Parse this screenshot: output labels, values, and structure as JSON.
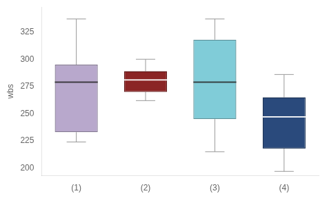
{
  "chart_data": {
    "type": "box",
    "categories": [
      "(1)",
      "(2)",
      "(3)",
      "(4)"
    ],
    "values": [
      {
        "whisker_low": 224,
        "q1": 233,
        "median": 279,
        "q3": 295,
        "whisker_high": 337
      },
      {
        "whisker_low": 262,
        "q1": 270,
        "median": 281,
        "q3": 289,
        "whisker_high": 300
      },
      {
        "whisker_low": 215,
        "q1": 245,
        "median": 279,
        "q3": 318,
        "whisker_high": 337
      },
      {
        "whisker_low": 197,
        "q1": 218,
        "median": 247,
        "q3": 265,
        "whisker_high": 286
      }
    ],
    "colors": [
      "#b8a8cc",
      "#8b2525",
      "#80ccd8",
      "#2a4a7c"
    ],
    "ylabel": "wbs",
    "ylim": [
      193,
      348
    ],
    "yticks": [
      200,
      225,
      250,
      275,
      300,
      325
    ],
    "grid": false
  }
}
